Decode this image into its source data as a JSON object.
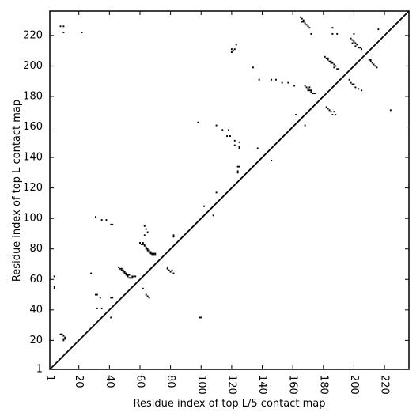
{
  "chart_data": {
    "type": "scatter",
    "xlabel": "Residue index of top L/5 contact map",
    "ylabel": "Residue index of top L contact map",
    "xlim": [
      1,
      236
    ],
    "ylim": [
      1,
      236
    ],
    "xticks": [
      1,
      20,
      40,
      60,
      80,
      100,
      120,
      140,
      160,
      180,
      200,
      220
    ],
    "yticks": [
      1,
      20,
      40,
      60,
      80,
      100,
      120,
      140,
      160,
      180,
      200,
      220
    ],
    "grid": false,
    "marker": "square",
    "color": "#000000",
    "diagonal": true,
    "lower_points": [
      [
        4,
        55
      ],
      [
        4,
        54
      ],
      [
        4,
        62
      ],
      [
        9,
        24
      ],
      [
        10,
        23
      ],
      [
        10,
        21
      ],
      [
        10,
        20
      ],
      [
        11,
        22
      ],
      [
        11,
        21
      ],
      [
        8,
        24
      ],
      [
        28,
        64
      ],
      [
        31,
        50
      ],
      [
        32,
        50
      ],
      [
        32,
        41
      ],
      [
        34,
        48
      ],
      [
        35,
        41
      ],
      [
        41,
        48
      ],
      [
        42,
        48
      ],
      [
        41,
        35
      ],
      [
        46,
        68
      ],
      [
        47,
        67
      ],
      [
        48,
        66
      ],
      [
        49,
        66
      ],
      [
        50,
        64
      ],
      [
        51,
        63
      ],
      [
        52,
        62
      ],
      [
        53,
        61
      ],
      [
        54,
        61
      ],
      [
        55,
        62
      ],
      [
        56,
        62
      ],
      [
        57,
        62
      ],
      [
        52,
        63
      ],
      [
        53,
        63
      ],
      [
        55,
        61
      ],
      [
        48,
        67
      ],
      [
        49,
        65
      ],
      [
        50,
        65
      ],
      [
        51,
        64
      ],
      [
        62,
        54
      ],
      [
        64,
        50
      ],
      [
        65,
        49
      ],
      [
        66,
        48
      ],
      [
        60,
        84
      ],
      [
        61,
        83
      ],
      [
        62,
        84
      ],
      [
        63,
        82
      ],
      [
        64,
        81
      ],
      [
        65,
        80
      ],
      [
        66,
        79
      ],
      [
        67,
        78
      ],
      [
        68,
        77
      ],
      [
        69,
        77
      ],
      [
        70,
        76
      ],
      [
        62,
        83
      ],
      [
        63,
        83
      ],
      [
        64,
        80
      ],
      [
        66,
        78
      ],
      [
        67,
        77
      ],
      [
        68,
        76
      ],
      [
        69,
        76
      ],
      [
        70,
        77
      ],
      [
        65,
        79
      ],
      [
        78,
        68
      ],
      [
        78,
        67
      ],
      [
        79,
        66
      ],
      [
        80,
        65
      ],
      [
        81,
        66
      ],
      [
        82,
        64
      ],
      [
        99,
        35
      ],
      [
        100,
        35
      ],
      [
        137,
        146
      ],
      [
        146,
        138
      ],
      [
        168,
        161
      ],
      [
        162,
        168
      ]
    ],
    "upper_points": [
      [
        4,
        62
      ],
      [
        8,
        226
      ],
      [
        10,
        226
      ],
      [
        10,
        222
      ],
      [
        22,
        222
      ],
      [
        31,
        101
      ],
      [
        35,
        99
      ],
      [
        38,
        99
      ],
      [
        41,
        96
      ],
      [
        42,
        96
      ],
      [
        63,
        95
      ],
      [
        64,
        93
      ],
      [
        63,
        89
      ],
      [
        65,
        91
      ],
      [
        82,
        89
      ],
      [
        82,
        88
      ],
      [
        98,
        163
      ],
      [
        102,
        108
      ],
      [
        108,
        102
      ],
      [
        110,
        117
      ],
      [
        110,
        161
      ],
      [
        114,
        158
      ],
      [
        117,
        154
      ],
      [
        118,
        158
      ],
      [
        119,
        154
      ],
      [
        120,
        211
      ],
      [
        121,
        210
      ],
      [
        120,
        209
      ],
      [
        122,
        211
      ],
      [
        122,
        151
      ],
      [
        122,
        148
      ],
      [
        123,
        214
      ],
      [
        124,
        134
      ],
      [
        124,
        131
      ],
      [
        125,
        150
      ],
      [
        125,
        147
      ],
      [
        125,
        146
      ],
      [
        125,
        134
      ],
      [
        124,
        130
      ],
      [
        134,
        199
      ],
      [
        138,
        191
      ],
      [
        146,
        191
      ],
      [
        149,
        191
      ],
      [
        153,
        189
      ],
      [
        157,
        189
      ],
      [
        161,
        187
      ],
      [
        165,
        232
      ],
      [
        166,
        231
      ],
      [
        166,
        229
      ],
      [
        167,
        230
      ],
      [
        168,
        228
      ],
      [
        169,
        227
      ],
      [
        170,
        226
      ],
      [
        171,
        225
      ],
      [
        172,
        221
      ],
      [
        167,
        229
      ],
      [
        168,
        187
      ],
      [
        169,
        186
      ],
      [
        170,
        185
      ],
      [
        171,
        184
      ],
      [
        172,
        183
      ],
      [
        173,
        182
      ],
      [
        174,
        182
      ],
      [
        175,
        182
      ],
      [
        170,
        184
      ],
      [
        171,
        186
      ],
      [
        172,
        184
      ],
      [
        181,
        206
      ],
      [
        182,
        205
      ],
      [
        183,
        204
      ],
      [
        184,
        203
      ],
      [
        185,
        203
      ],
      [
        186,
        202
      ],
      [
        187,
        201
      ],
      [
        188,
        200
      ],
      [
        189,
        198
      ],
      [
        190,
        198
      ],
      [
        183,
        205
      ],
      [
        185,
        202
      ],
      [
        187,
        199
      ],
      [
        182,
        173
      ],
      [
        183,
        172
      ],
      [
        184,
        171
      ],
      [
        185,
        170
      ],
      [
        187,
        170
      ],
      [
        186,
        168
      ],
      [
        188,
        168
      ],
      [
        186,
        225
      ],
      [
        186,
        221
      ],
      [
        189,
        221
      ],
      [
        198,
        218
      ],
      [
        199,
        217
      ],
      [
        200,
        216
      ],
      [
        201,
        215
      ],
      [
        202,
        214
      ],
      [
        203,
        212
      ],
      [
        204,
        212
      ],
      [
        205,
        211
      ],
      [
        200,
        221
      ],
      [
        199,
        215
      ],
      [
        201,
        213
      ],
      [
        197,
        191
      ],
      [
        198,
        189
      ],
      [
        199,
        188
      ],
      [
        200,
        188
      ],
      [
        201,
        186
      ],
      [
        203,
        185
      ],
      [
        205,
        184
      ],
      [
        210,
        204
      ],
      [
        211,
        203
      ],
      [
        212,
        202
      ],
      [
        213,
        201
      ],
      [
        214,
        200
      ],
      [
        215,
        199
      ],
      [
        211,
        204
      ],
      [
        216,
        224
      ],
      [
        224,
        171
      ]
    ]
  }
}
